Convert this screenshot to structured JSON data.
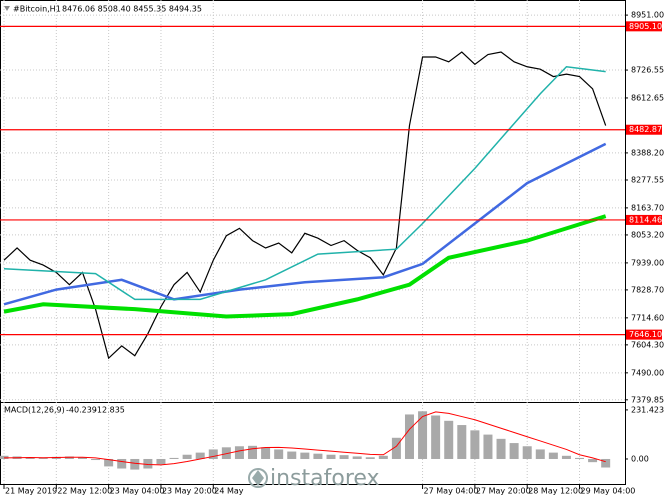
{
  "chart_data": [
    {
      "type": "line",
      "title": "#Bitcoin,H1",
      "subtitle": "8476.06 8508.40 8455.35 8494.35",
      "watermark": "instaforex",
      "xlim": [
        0,
        47.5
      ],
      "ylim": [
        7375,
        8980
      ],
      "grid": true,
      "xticks": [
        {
          "value": 0,
          "label": "21 May 2019"
        },
        {
          "value": 4,
          "label": "22 May 12:00"
        },
        {
          "value": 8,
          "label": "23 May 04:00"
        },
        {
          "value": 12,
          "label": "23 May 20:00"
        },
        {
          "value": 16,
          "label": "24 May"
        },
        {
          "value": 32,
          "label": "27 May 04:00"
        },
        {
          "value": 36,
          "label": "27 May 20:00"
        },
        {
          "value": 40,
          "label": "28 May 12:00"
        },
        {
          "value": 44,
          "label": "29 May 04:00"
        }
      ],
      "yticks": [
        {
          "value": 8951,
          "label": "8951.00"
        },
        {
          "value": 8726.55,
          "label": "8726.55"
        },
        {
          "value": 8612.65,
          "label": "8612.65"
        },
        {
          "value": 8388.2,
          "label": "8388.20"
        },
        {
          "value": 8277.55,
          "label": "8277.55"
        },
        {
          "value": 8163.7,
          "label": "8163.70"
        },
        {
          "value": 8053.2,
          "label": "8053.20"
        },
        {
          "value": 7939,
          "label": "7939.00"
        },
        {
          "value": 7828.7,
          "label": "7828.70"
        },
        {
          "value": 7714.6,
          "label": "7714.60"
        },
        {
          "value": 7604.3,
          "label": "7604.30"
        },
        {
          "value": 7490,
          "label": "7490.00"
        },
        {
          "value": 7379.85,
          "label": "7379.85"
        }
      ],
      "levels": [
        {
          "value": 8905.1,
          "label": "8905.10"
        },
        {
          "value": 8482.87,
          "label": "8482.87"
        },
        {
          "value": 8114.46,
          "label": "8114.46"
        },
        {
          "value": 7646.1,
          "label": "7646.10"
        }
      ],
      "level_color": "#ff0000",
      "series": [
        {
          "color": "#000000",
          "width": 1.2,
          "x": [
            0,
            1,
            2,
            3,
            4,
            5,
            6,
            7,
            8,
            9,
            10,
            11,
            12,
            13,
            14,
            15,
            16,
            17,
            18,
            19,
            20,
            21,
            22,
            23,
            24,
            25,
            26,
            27,
            28,
            29,
            30,
            31,
            32,
            33,
            34,
            35,
            36,
            37,
            38,
            39,
            40,
            41,
            42,
            43,
            44,
            45,
            46
          ],
          "values": [
            7950,
            8000,
            7950,
            7930,
            7900,
            7850,
            7900,
            7750,
            7550,
            7600,
            7560,
            7650,
            7760,
            7850,
            7900,
            7820,
            7950,
            8050,
            8080,
            8030,
            8000,
            8020,
            7980,
            8060,
            8040,
            8010,
            8030,
            7990,
            7960,
            7890,
            8000,
            8500,
            8780,
            8780,
            8760,
            8800,
            8750,
            8790,
            8800,
            8760,
            8740,
            8730,
            8700,
            8710,
            8700,
            8650,
            8500
          ]
        },
        {
          "color": "#00e000",
          "width": 4,
          "x": [
            0,
            3,
            10,
            17,
            22,
            27,
            31,
            34,
            40,
            46
          ],
          "values": [
            7740,
            7770,
            7750,
            7720,
            7730,
            7790,
            7850,
            7960,
            8030,
            8130
          ]
        },
        {
          "color": "#4169e1",
          "width": 2.5,
          "x": [
            0,
            4,
            9,
            13,
            18,
            23,
            29,
            32,
            36,
            40,
            46
          ],
          "values": [
            7770,
            7830,
            7870,
            7790,
            7830,
            7860,
            7880,
            7935,
            8100,
            8265,
            8425
          ]
        },
        {
          "color": "#20b2aa",
          "width": 1.5,
          "x": [
            0,
            7,
            10,
            15,
            20,
            24,
            30,
            32,
            36,
            41,
            43,
            46
          ],
          "values": [
            7915,
            7895,
            7790,
            7790,
            7870,
            7975,
            7995,
            8100,
            8325,
            8630,
            8740,
            8720
          ]
        }
      ]
    },
    {
      "type": "macd",
      "title": "MACD(12,26,9)",
      "ylim": [
        -118,
        264
      ],
      "yticks": [
        {
          "value": 231.423,
          "label": "231.423"
        },
        {
          "value": 0,
          "label": "0.00"
        }
      ],
      "series": [
        {
          "style": "bar",
          "color": "#a9a9a9",
          "values": [
            15,
            12,
            8,
            5,
            10,
            12,
            8,
            -5,
            -35,
            -45,
            -50,
            -45,
            -25,
            5,
            20,
            30,
            45,
            55,
            60,
            62,
            55,
            45,
            35,
            30,
            25,
            20,
            18,
            12,
            8,
            15,
            100,
            210,
            225,
            205,
            180,
            160,
            135,
            115,
            95,
            75,
            60,
            45,
            30,
            15,
            5,
            -15,
            -40.239
          ]
        },
        {
          "style": "line",
          "color": "#ff0000",
          "values": [
            5,
            6,
            7,
            6,
            7,
            8,
            8,
            5,
            -3,
            -12,
            -20,
            -26,
            -28,
            -22,
            -12,
            0,
            12,
            25,
            38,
            48,
            54,
            55,
            52,
            47,
            42,
            37,
            32,
            27,
            22,
            20,
            60,
            140,
            200,
            222,
            215,
            200,
            185,
            165,
            145,
            125,
            105,
            85,
            65,
            45,
            20,
            5,
            -12.835
          ]
        }
      ]
    }
  ]
}
